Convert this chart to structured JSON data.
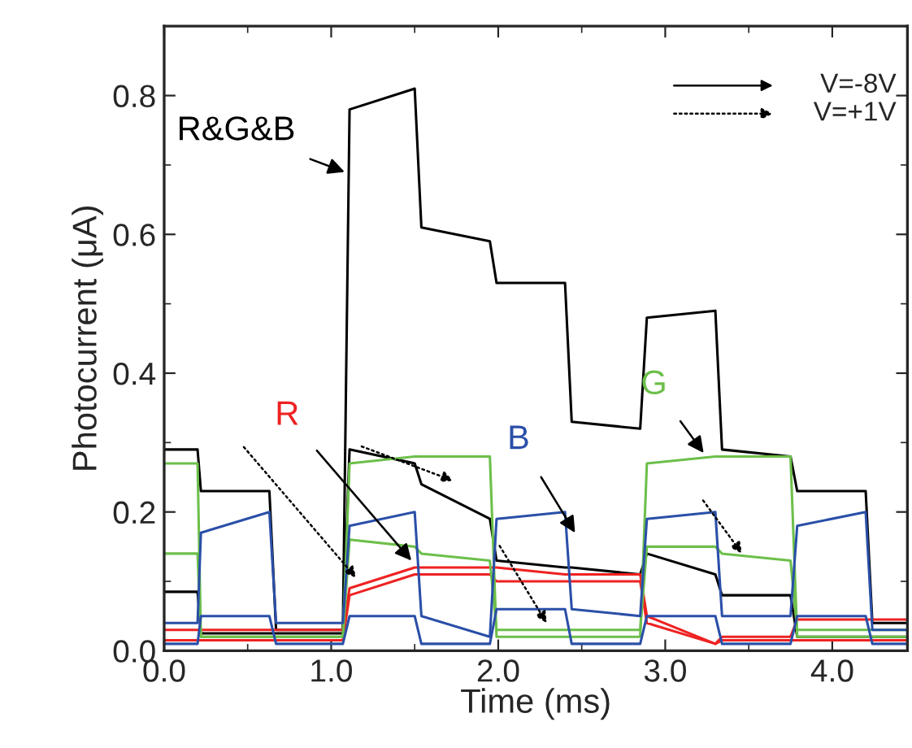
{
  "chart_data": {
    "type": "line",
    "xlabel": "Time (ms)",
    "ylabel": "Photocurrent (μA)",
    "x": [
      0,
      0.2,
      0.22,
      0.63,
      0.67,
      1.07,
      1.11,
      1.5,
      1.54,
      1.95,
      1.99,
      2.4,
      2.44,
      2.85,
      2.89,
      3.3,
      3.34,
      3.75,
      3.79,
      4.2,
      4.24,
      4.45
    ],
    "series": [
      {
        "color": "#000000",
        "values": [
          0.29,
          0.29,
          0.23,
          0.23,
          0.03,
          0.03,
          0.78,
          0.81,
          0.61,
          0.59,
          0.53,
          0.53,
          0.33,
          0.32,
          0.48,
          0.49,
          0.29,
          0.28,
          0.23,
          0.23,
          0.04,
          0.04
        ]
      },
      {
        "color": "#000000",
        "values": [
          0.085,
          0.085,
          0.025,
          0.025,
          0.025,
          0.025,
          0.29,
          0.27,
          0.24,
          0.19,
          0.13,
          0.12,
          0.12,
          0.11,
          0.14,
          0.11,
          0.08,
          0.08,
          0.02,
          0.02,
          0.02,
          0.02
        ]
      },
      {
        "color": "#ee2222",
        "values": [
          0.03,
          0.03,
          0.03,
          0.03,
          0.03,
          0.03,
          0.09,
          0.12,
          0.12,
          0.12,
          0.12,
          0.11,
          0.11,
          0.11,
          0.05,
          0.01,
          0.02,
          0.02,
          0.045,
          0.045,
          0.045,
          0.045
        ]
      },
      {
        "color": "#ee2222",
        "values": [
          0.015,
          0.015,
          0.015,
          0.015,
          0.015,
          0.015,
          0.08,
          0.11,
          0.11,
          0.11,
          0.1,
          0.1,
          0.1,
          0.1,
          0.04,
          0.01,
          0.015,
          0.015,
          0.015,
          0.015,
          0.015,
          0.015
        ]
      },
      {
        "color": "#6cbf4a",
        "values": [
          0.27,
          0.27,
          0.02,
          0.02,
          0.02,
          0.02,
          0.27,
          0.28,
          0.28,
          0.28,
          0.02,
          0.02,
          0.02,
          0.02,
          0.27,
          0.28,
          0.28,
          0.28,
          0.02,
          0.02,
          0.02,
          0.02
        ]
      },
      {
        "color": "#6cbf4a",
        "values": [
          0.14,
          0.14,
          0.02,
          0.02,
          0.02,
          0.02,
          0.16,
          0.15,
          0.14,
          0.13,
          0.03,
          0.03,
          0.03,
          0.03,
          0.15,
          0.15,
          0.14,
          0.13,
          0.03,
          0.03,
          0.03,
          0.03
        ]
      },
      {
        "color": "#2a4fa8",
        "values": [
          0.04,
          0.04,
          0.17,
          0.2,
          0.04,
          0.04,
          0.18,
          0.2,
          0.05,
          0.02,
          0.19,
          0.2,
          0.06,
          0.05,
          0.19,
          0.2,
          0.05,
          0.05,
          0.18,
          0.2,
          0.03,
          0.03
        ]
      },
      {
        "color": "#2a4fa8",
        "values": [
          0.01,
          0.01,
          0.05,
          0.05,
          0.01,
          0.01,
          0.05,
          0.05,
          0.01,
          0.01,
          0.06,
          0.06,
          0.01,
          0.01,
          0.05,
          0.05,
          0.01,
          0.01,
          0.05,
          0.05,
          0.01,
          0.01
        ]
      }
    ],
    "annotations": [
      {
        "text": "R&G&B",
        "x": 1.08,
        "y": 0.69
      },
      {
        "text": "R",
        "x": 1.48,
        "y": 0.13
      },
      {
        "text": "B",
        "x": 2.46,
        "y": 0.17
      },
      {
        "text": "G",
        "x": 3.23,
        "y": 0.285
      },
      "V=-8V",
      "V=+1V"
    ],
    "xlim": [
      0,
      4.45
    ],
    "ylim": [
      0,
      0.9
    ],
    "xticks": [
      {
        "value": 0,
        "label": "0.0"
      },
      {
        "value": 1,
        "label": "1.0"
      },
      {
        "value": 2,
        "label": "2.0"
      },
      {
        "value": 3,
        "label": "3.0"
      },
      {
        "value": 4,
        "label": "4.0"
      }
    ],
    "yticks": [
      {
        "value": 0,
        "label": "0.0"
      },
      {
        "value": 0.2,
        "label": "0.2"
      },
      {
        "value": 0.4,
        "label": "0.4"
      },
      {
        "value": 0.6,
        "label": "0.6"
      },
      {
        "value": 0.8,
        "label": "0.8"
      }
    ]
  }
}
